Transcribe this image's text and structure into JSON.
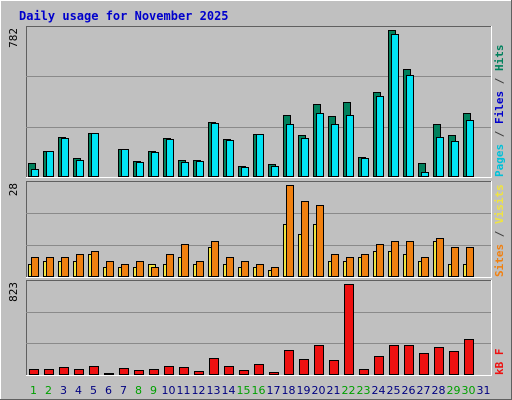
{
  "chart_data": {
    "type": "bar",
    "title": "Daily usage for November 2025",
    "categories": [
      "1",
      "2",
      "3",
      "4",
      "5",
      "6",
      "7",
      "8",
      "9",
      "10",
      "11",
      "12",
      "13",
      "14",
      "15",
      "16",
      "17",
      "18",
      "19",
      "20",
      "21",
      "22",
      "23",
      "24",
      "25",
      "26",
      "27",
      "28",
      "29",
      "30",
      "31"
    ],
    "weekend_days": [
      "1",
      "2",
      "8",
      "9",
      "15",
      "16",
      "22",
      "23",
      "29",
      "30"
    ],
    "colors": {
      "hits": "#00805c",
      "files": "#00c0d8",
      "pages": "#00e4f4",
      "visits": "#f0e440",
      "sites": "#f08010",
      "kb": "#ee1010",
      "weekday_label": "#000080",
      "weekend_label": "#00a000",
      "title": "#0000cc",
      "panel_bg": "#c0c0c0",
      "frame": "#e8e8e8"
    },
    "panels": [
      {
        "name": "hits-files-pages",
        "ymax_label": "782",
        "ymax": 782,
        "right_label": [
          {
            "text": "Pages",
            "color": "#00c0d8"
          },
          {
            "text": " / ",
            "color": "#404040"
          },
          {
            "text": "Files",
            "color": "#0000cc"
          },
          {
            "text": " / ",
            "color": "#404040"
          },
          {
            "text": "Hits",
            "color": "#00805c"
          }
        ],
        "series": [
          {
            "name": "Hits",
            "color": "#00805c",
            "values": [
              75,
              140,
              215,
              100,
              235,
              0,
              150,
              85,
              140,
              205,
              90,
              90,
              290,
              200,
              60,
              230,
              70,
              330,
              225,
              390,
              325,
              400,
              105,
              450,
              782,
              575,
              75,
              280,
              225,
              340,
              0
            ]
          },
          {
            "name": "Pages",
            "color": "#00e4f4",
            "values": [
              40,
              140,
              205,
              90,
              235,
              0,
              150,
              80,
              135,
              200,
              80,
              85,
              285,
              195,
              55,
              230,
              60,
              280,
              205,
              340,
              280,
              330,
              100,
              430,
              760,
              540,
              25,
              215,
              190,
              305,
              0
            ]
          }
        ]
      },
      {
        "name": "visits-sites",
        "ymax_label": "28",
        "ymax": 28,
        "right_label": [
          {
            "text": "Sites",
            "color": "#f08010"
          },
          {
            "text": " / ",
            "color": "#404040"
          },
          {
            "text": "Visits",
            "color": "#f0e440"
          }
        ],
        "series": [
          {
            "name": "Visits",
            "color": "#f0e440",
            "values": [
              4,
              5,
              5,
              5,
              7,
              3,
              3,
              3,
              4,
              4,
              6,
              4,
              9,
              4,
              3,
              3,
              2,
              16,
              13,
              16,
              5,
              5,
              6,
              8,
              8,
              7,
              5,
              11,
              4,
              4,
              0
            ]
          },
          {
            "name": "Sites",
            "color": "#f08010",
            "values": [
              6,
              6,
              6,
              7,
              8,
              5,
              4,
              5,
              3,
              7,
              10,
              5,
              11,
              6,
              5,
              4,
              3,
              28,
              23,
              22,
              7,
              6,
              7,
              10,
              11,
              11,
              6,
              12,
              9,
              9,
              0
            ]
          }
        ]
      },
      {
        "name": "kbytes",
        "ymax_label": "823",
        "ymax": 823,
        "right_label": [
          {
            "text": "kB F",
            "color": "#ee1010"
          }
        ],
        "series": [
          {
            "name": "kB F",
            "color": "#ee1010",
            "values": [
              50,
              55,
              75,
              55,
              85,
              15,
              60,
              45,
              55,
              80,
              70,
              40,
              150,
              80,
              45,
              95,
              30,
              225,
              145,
              270,
              140,
              823,
              55,
              170,
              270,
              275,
              200,
              250,
              215,
              330,
              0
            ]
          }
        ]
      }
    ]
  }
}
